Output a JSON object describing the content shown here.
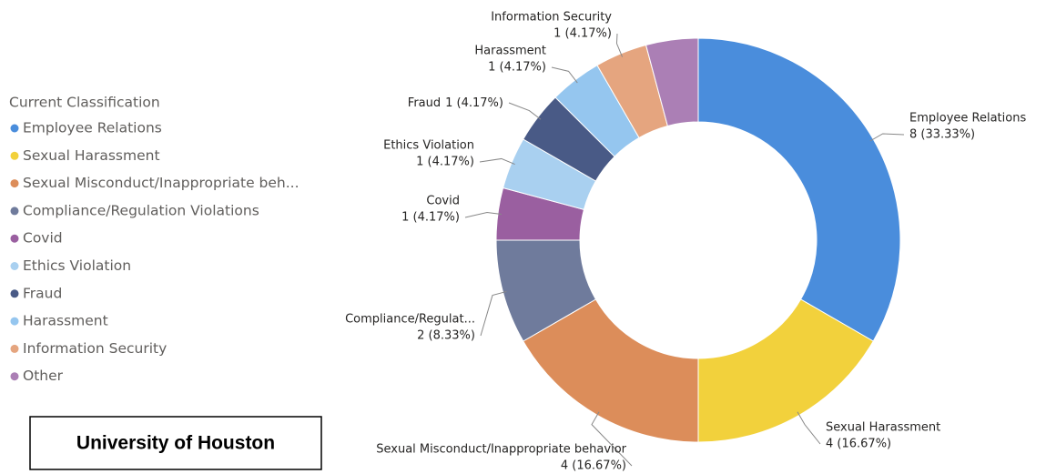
{
  "chart_data": {
    "type": "donut",
    "legend_title": "Current Classification",
    "categories": [
      "Employee Relations",
      "Sexual Harassment",
      "Sexual Misconduct/Inappropriate beh...",
      "Compliance/Regulation Violations",
      "Covid",
      "Ethics Violation",
      "Fraud",
      "Harassment",
      "Information Security",
      "Other"
    ],
    "slice_labels": [
      "Employee Relations",
      "Sexual Harassment",
      "Sexual Misconduct/Inappropriate behavior",
      "Compliance/Regulat...",
      "Covid",
      "Ethics Violation",
      "Fraud",
      "Harassment",
      "Information Security",
      null
    ],
    "values": [
      8,
      4,
      4,
      2,
      1,
      1,
      1,
      1,
      1,
      1
    ],
    "value_labels": [
      "8 (33.33%)",
      "4 (16.67%)",
      "4 (16.67%)",
      "2 (8.33%)",
      "1 (4.17%)",
      "1 (4.17%)",
      "1 (4.17%)",
      "1 (4.17%)",
      "1 (4.17%)",
      null
    ],
    "colors": [
      "#4a8ddc",
      "#f2d13c",
      "#dc8d5a",
      "#6f7b9c",
      "#9a5fa0",
      "#a9d0f0",
      "#495a86",
      "#95c6ef",
      "#e5a57f",
      "#ab7fb5"
    ],
    "legend_position": "left"
  },
  "caption": "University of Houston"
}
